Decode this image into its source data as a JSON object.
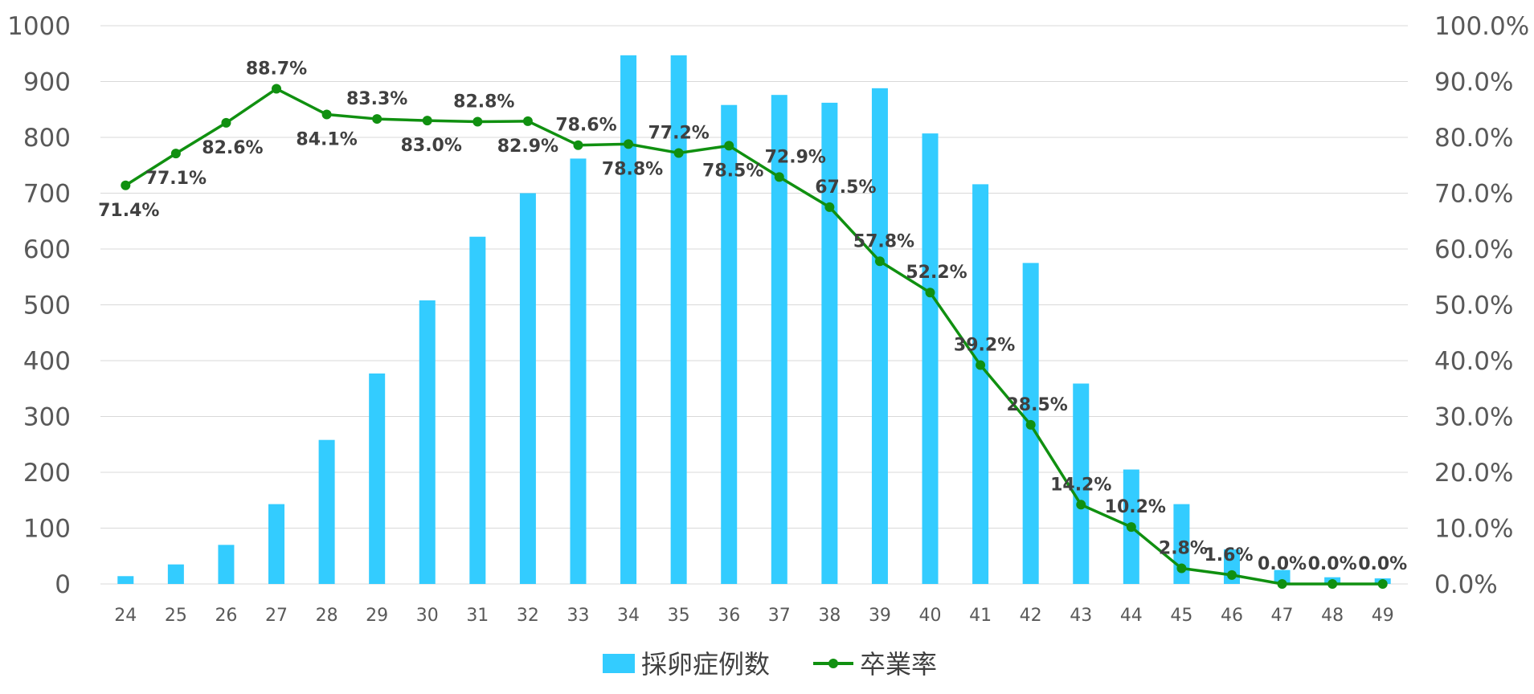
{
  "chart_data": {
    "type": "bar",
    "categories": [
      "24",
      "25",
      "26",
      "27",
      "28",
      "29",
      "30",
      "31",
      "32",
      "33",
      "34",
      "35",
      "36",
      "37",
      "38",
      "39",
      "40",
      "41",
      "42",
      "43",
      "44",
      "45",
      "46",
      "47",
      "48",
      "49"
    ],
    "series": [
      {
        "name": "採卵症例数",
        "type": "bar",
        "axis": "left",
        "color": "#33ccff",
        "values": [
          14,
          35,
          70,
          143,
          258,
          377,
          508,
          622,
          700,
          762,
          947,
          947,
          858,
          876,
          862,
          888,
          807,
          716,
          575,
          359,
          205,
          143,
          62,
          25,
          12,
          10
        ]
      },
      {
        "name": "卒業率",
        "type": "line",
        "axis": "right",
        "color": "#109010",
        "values": [
          71.4,
          77.1,
          82.6,
          88.7,
          84.1,
          83.3,
          83.0,
          82.8,
          82.9,
          78.6,
          78.8,
          77.2,
          78.5,
          72.9,
          67.5,
          57.8,
          52.2,
          39.2,
          28.5,
          14.2,
          10.2,
          2.8,
          1.6,
          0.0,
          0.0,
          0.0
        ],
        "labels": [
          "71.4%",
          "77.1%",
          "82.6%",
          "88.7%",
          "84.1%",
          "83.3%",
          "83.0%",
          "82.8%",
          "82.9%",
          "78.6%",
          "78.8%",
          "77.2%",
          "78.5%",
          "72.9%",
          "67.5%",
          "57.8%",
          "52.2%",
          "39.2%",
          "28.5%",
          "14.2%",
          "10.2%",
          "2.8%",
          "1.6%",
          "0.0%",
          "0.0%",
          "0.0%"
        ]
      }
    ],
    "y_left": {
      "range": [
        0,
        1000
      ],
      "ticks": [
        "0",
        "100",
        "200",
        "300",
        "400",
        "500",
        "600",
        "700",
        "800",
        "900",
        "1000"
      ]
    },
    "y_right": {
      "range": [
        0,
        100
      ],
      "ticks": [
        "0.0%",
        "10.0%",
        "20.0%",
        "30.0%",
        "40.0%",
        "50.0%",
        "60.0%",
        "70.0%",
        "80.0%",
        "90.0%",
        "100.0%"
      ]
    },
    "grid": true,
    "legend_position": "bottom"
  }
}
